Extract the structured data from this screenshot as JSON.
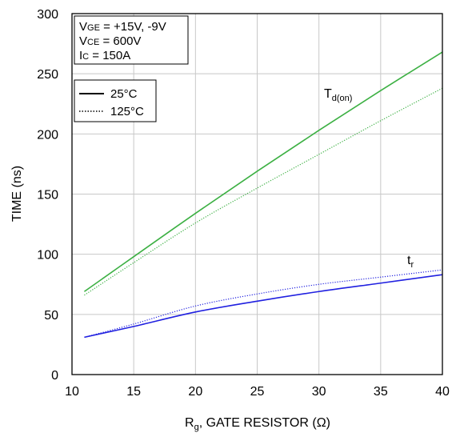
{
  "chart_data": {
    "type": "line",
    "xlabel": "R",
    "xlabel_sub": "g",
    "xlabel_rest": ", GATE RESISTOR (Ω)",
    "ylabel": "TIME (ns)",
    "xlim": [
      10,
      40
    ],
    "ylim": [
      0,
      300
    ],
    "xticks": [
      10,
      15,
      20,
      25,
      30,
      35,
      40
    ],
    "yticks": [
      0,
      50,
      100,
      150,
      200,
      250,
      300
    ],
    "grid": true,
    "conditions": {
      "vge": {
        "main": "V",
        "sub": "GE",
        "rest": " = +15V, -9V"
      },
      "vce": {
        "main": "V",
        "sub": "CE",
        "rest": " = 600V"
      },
      "ic": {
        "main": "I",
        "sub": "C",
        "rest": " = 150A"
      }
    },
    "legend": {
      "placement": "top-left",
      "items": [
        {
          "label": "25°C",
          "style": "solid"
        },
        {
          "label": "125°C",
          "style": "dotted"
        }
      ]
    },
    "annotations": {
      "td_on": {
        "main": "T",
        "sub": "d(on)"
      },
      "tr": {
        "main": "t",
        "sub": "r"
      }
    },
    "series": [
      {
        "curve": "td_on",
        "temp": "25°C",
        "color": "#3cb043",
        "style": "solid",
        "x": [
          11,
          15,
          20,
          25,
          30,
          35,
          40
        ],
        "y": [
          69,
          98,
          134,
          169,
          203,
          236,
          268
        ]
      },
      {
        "curve": "td_on",
        "temp": "125°C",
        "color": "#3cb043",
        "style": "dotted",
        "x": [
          11,
          15,
          20,
          25,
          30,
          35,
          40
        ],
        "y": [
          66,
          93,
          126,
          155,
          183,
          211,
          238
        ]
      },
      {
        "curve": "tr",
        "temp": "25°C",
        "color": "#2020e0",
        "style": "solid",
        "x": [
          11,
          15,
          20,
          25,
          30,
          35,
          40
        ],
        "y": [
          31,
          40,
          52,
          61,
          69,
          76,
          83
        ]
      },
      {
        "curve": "tr",
        "temp": "125°C",
        "color": "#2020e0",
        "style": "dotted",
        "x": [
          11,
          15,
          20,
          25,
          30,
          35,
          40
        ],
        "y": [
          31,
          42,
          57,
          67,
          75,
          81,
          87
        ]
      }
    ]
  }
}
